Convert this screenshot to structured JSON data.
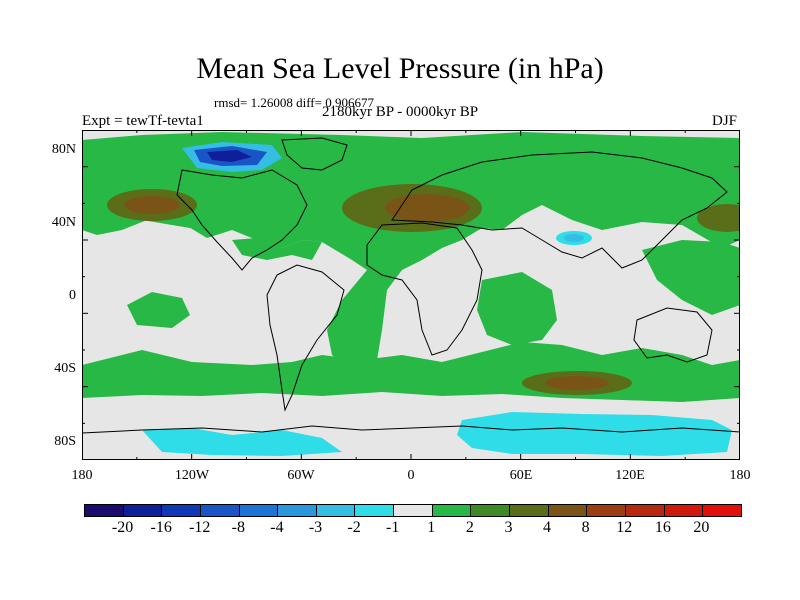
{
  "title": "Mean Sea Level Pressure (in hPa)",
  "stats": "rmsd= 1.26008 diff= 0.906677",
  "experiment": "Expt = tewTf-tevta1",
  "period": "2180kyr BP - 0000kyr BP",
  "season": "DJF",
  "lat_labels": [
    "80N",
    "40N",
    "0",
    "40S",
    "80S"
  ],
  "lon_labels": [
    "180",
    "120W",
    "60W",
    "0",
    "60E",
    "120E",
    "180"
  ],
  "legend": {
    "labels": [
      "-20",
      "-16",
      "-12",
      "-8",
      "-4",
      "-3",
      "-2",
      "-1",
      "1",
      "2",
      "3",
      "4",
      "8",
      "12",
      "16",
      "20"
    ],
    "colors": [
      "#1b0c6e",
      "#0f1f9a",
      "#1037b5",
      "#1a55c8",
      "#1e74d6",
      "#2a98dc",
      "#35bde3",
      "#2fdde8",
      "#e6e6e6",
      "#27b845",
      "#3f8a24",
      "#5a6e1a",
      "#7a5417",
      "#9b3e12",
      "#b52a0e",
      "#cf1a0c",
      "#e0100b"
    ]
  },
  "colors": {
    "neutral": "#e6e6e6",
    "green": "#27b845",
    "olive": "#5a6e1a",
    "brown": "#7a5417",
    "cyan": "#2fdde8",
    "lightblue": "#35bde3",
    "blue": "#1a55c8",
    "darkblue": "#0f1f9a"
  }
}
